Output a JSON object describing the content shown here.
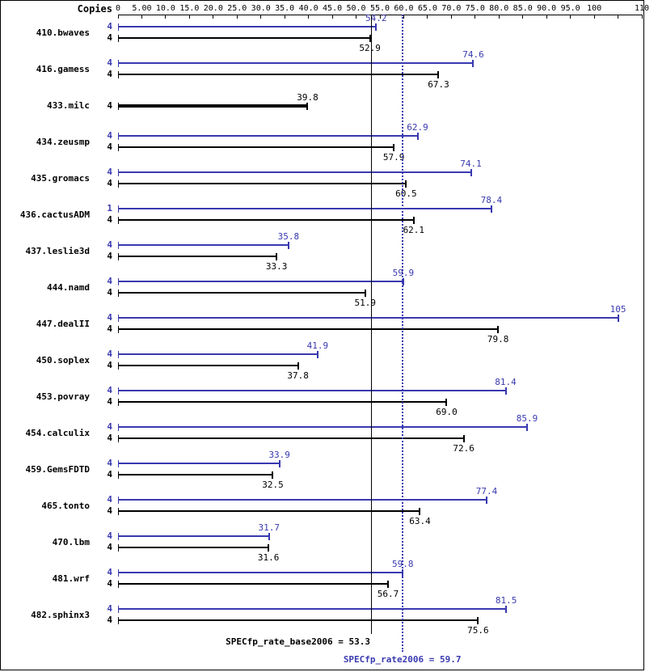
{
  "header": {
    "copies_label": "Copies"
  },
  "colors": {
    "peak": "#3939b0",
    "base": "#000000",
    "background": "#ffffff"
  },
  "axis": {
    "min": 0,
    "max": 110,
    "ticks": [
      {
        "value": 0,
        "label": "0"
      },
      {
        "value": 5,
        "label": "5.00"
      },
      {
        "value": 10,
        "label": "10.0"
      },
      {
        "value": 15,
        "label": "15.0"
      },
      {
        "value": 20,
        "label": "20.0"
      },
      {
        "value": 25,
        "label": "25.0"
      },
      {
        "value": 30,
        "label": "30.0"
      },
      {
        "value": 35,
        "label": "35.0"
      },
      {
        "value": 40,
        "label": "40.0"
      },
      {
        "value": 45,
        "label": "45.0"
      },
      {
        "value": 50,
        "label": "50.0"
      },
      {
        "value": 55,
        "label": "55.0"
      },
      {
        "value": 60,
        "label": "60.0"
      },
      {
        "value": 65,
        "label": "65.0"
      },
      {
        "value": 70,
        "label": "70.0"
      },
      {
        "value": 75,
        "label": "75.0"
      },
      {
        "value": 80,
        "label": "80.0"
      },
      {
        "value": 85,
        "label": "85.0"
      },
      {
        "value": 90,
        "label": "90.0"
      },
      {
        "value": 95,
        "label": "95.0"
      },
      {
        "value": 100,
        "label": "100"
      },
      {
        "value": 105,
        "label": ""
      },
      {
        "value": 110,
        "label": "110"
      }
    ]
  },
  "chart_data": {
    "type": "bar",
    "orientation": "horizontal",
    "series": [
      "peak",
      "base"
    ],
    "xlim": [
      0,
      110
    ],
    "benchmarks": [
      {
        "name": "410.bwaves",
        "bars": [
          {
            "series": "peak",
            "copies": "4",
            "value": 54.2,
            "label": "54.2"
          },
          {
            "series": "base",
            "copies": "4",
            "value": 52.9,
            "label": "52.9"
          }
        ]
      },
      {
        "name": "416.gamess",
        "bars": [
          {
            "series": "peak",
            "copies": "4",
            "value": 74.6,
            "label": "74.6"
          },
          {
            "series": "base",
            "copies": "4",
            "value": 67.3,
            "label": "67.3"
          }
        ]
      },
      {
        "name": "433.milc",
        "bars": [
          {
            "series": "base",
            "copies": "4",
            "value": 39.8,
            "label": "39.8",
            "thick": true
          }
        ]
      },
      {
        "name": "434.zeusmp",
        "bars": [
          {
            "series": "peak",
            "copies": "4",
            "value": 62.9,
            "label": "62.9"
          },
          {
            "series": "base",
            "copies": "4",
            "value": 57.9,
            "label": "57.9"
          }
        ]
      },
      {
        "name": "435.gromacs",
        "bars": [
          {
            "series": "peak",
            "copies": "4",
            "value": 74.1,
            "label": "74.1"
          },
          {
            "series": "base",
            "copies": "4",
            "value": 60.5,
            "label": "60.5"
          }
        ]
      },
      {
        "name": "436.cactusADM",
        "bars": [
          {
            "series": "peak",
            "copies": "1",
            "value": 78.4,
            "label": "78.4"
          },
          {
            "series": "base",
            "copies": "4",
            "value": 62.1,
            "label": "62.1"
          }
        ]
      },
      {
        "name": "437.leslie3d",
        "bars": [
          {
            "series": "peak",
            "copies": "4",
            "value": 35.8,
            "label": "35.8"
          },
          {
            "series": "base",
            "copies": "4",
            "value": 33.3,
            "label": "33.3"
          }
        ]
      },
      {
        "name": "444.namd",
        "bars": [
          {
            "series": "peak",
            "copies": "4",
            "value": 59.9,
            "label": "59.9"
          },
          {
            "series": "base",
            "copies": "4",
            "value": 51.9,
            "label": "51.9"
          }
        ]
      },
      {
        "name": "447.dealII",
        "bars": [
          {
            "series": "peak",
            "copies": "4",
            "value": 105,
            "label": "105"
          },
          {
            "series": "base",
            "copies": "4",
            "value": 79.8,
            "label": "79.8"
          }
        ]
      },
      {
        "name": "450.soplex",
        "bars": [
          {
            "series": "peak",
            "copies": "4",
            "value": 41.9,
            "label": "41.9"
          },
          {
            "series": "base",
            "copies": "4",
            "value": 37.8,
            "label": "37.8"
          }
        ]
      },
      {
        "name": "453.povray",
        "bars": [
          {
            "series": "peak",
            "copies": "4",
            "value": 81.4,
            "label": "81.4"
          },
          {
            "series": "base",
            "copies": "4",
            "value": 69.0,
            "label": "69.0"
          }
        ]
      },
      {
        "name": "454.calculix",
        "bars": [
          {
            "series": "peak",
            "copies": "4",
            "value": 85.9,
            "label": "85.9"
          },
          {
            "series": "base",
            "copies": "4",
            "value": 72.6,
            "label": "72.6"
          }
        ]
      },
      {
        "name": "459.GemsFDTD",
        "bars": [
          {
            "series": "peak",
            "copies": "4",
            "value": 33.9,
            "label": "33.9"
          },
          {
            "series": "base",
            "copies": "4",
            "value": 32.5,
            "label": "32.5"
          }
        ]
      },
      {
        "name": "465.tonto",
        "bars": [
          {
            "series": "peak",
            "copies": "4",
            "value": 77.4,
            "label": "77.4"
          },
          {
            "series": "base",
            "copies": "4",
            "value": 63.4,
            "label": "63.4"
          }
        ]
      },
      {
        "name": "470.lbm",
        "bars": [
          {
            "series": "peak",
            "copies": "4",
            "value": 31.7,
            "label": "31.7"
          },
          {
            "series": "base",
            "copies": "4",
            "value": 31.6,
            "label": "31.6"
          }
        ]
      },
      {
        "name": "481.wrf",
        "bars": [
          {
            "series": "peak",
            "copies": "4",
            "value": 59.8,
            "label": "59.8"
          },
          {
            "series": "base",
            "copies": "4",
            "value": 56.7,
            "label": "56.7"
          }
        ]
      },
      {
        "name": "482.sphinx3",
        "bars": [
          {
            "series": "peak",
            "copies": "4",
            "value": 81.5,
            "label": "81.5"
          },
          {
            "series": "base",
            "copies": "4",
            "value": 75.6,
            "label": "75.6"
          }
        ]
      }
    ],
    "reference_lines": [
      {
        "name": "base",
        "label": "SPECfp_rate_base2006 = 53.3",
        "value": 53.3,
        "style": "solid",
        "color": "#000000",
        "align": "right"
      },
      {
        "name": "peak",
        "label": "SPECfp_rate2006 = 59.7",
        "value": 59.7,
        "style": "dotted",
        "color": "#3939b0",
        "align": "center"
      }
    ]
  }
}
